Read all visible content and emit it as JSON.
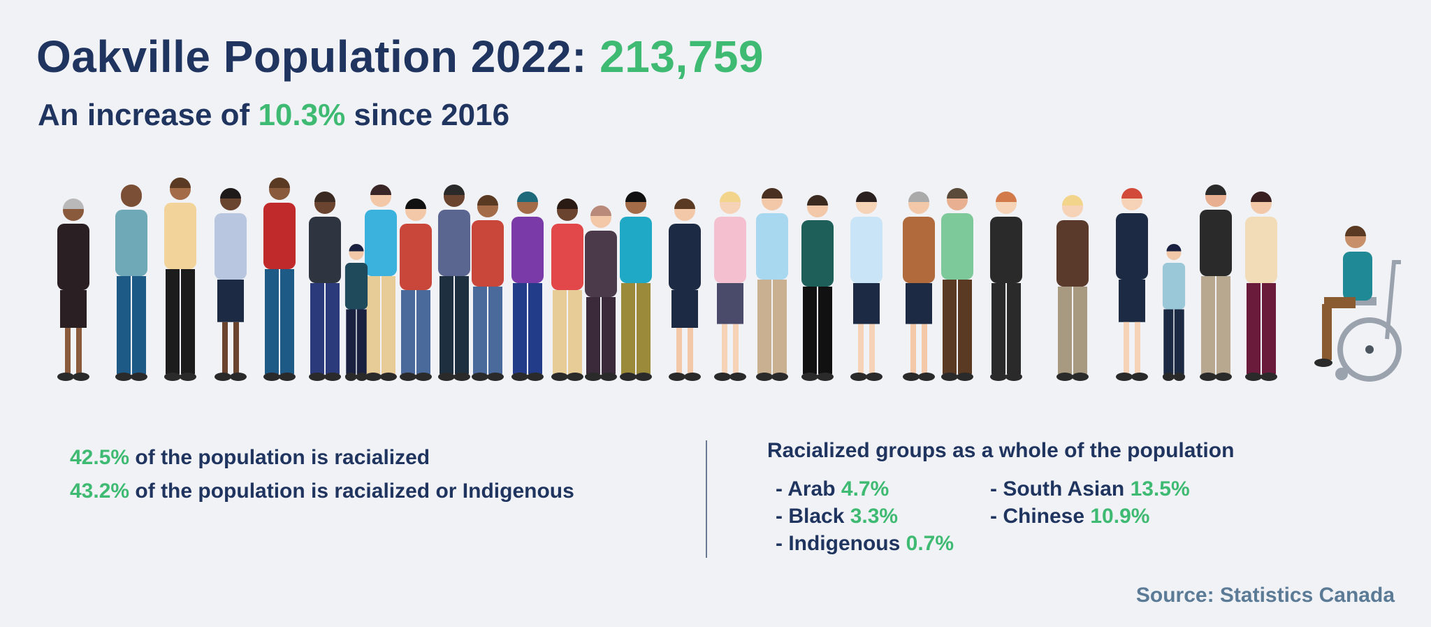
{
  "header": {
    "title_prefix": "Oakville Population 2022: ",
    "title_value": "213,759",
    "subtitle_prefix": "An increase of ",
    "subtitle_value": "10.3%",
    "subtitle_suffix": " since 2016"
  },
  "illustration": {
    "description": "Diverse group of 29 illustrated people standing in a row, including a person in a wheelchair",
    "figure_count": 29
  },
  "stats": [
    {
      "value": "42.5%",
      "text": " of the population is racialized"
    },
    {
      "value": "43.2%",
      "text": " of the population is racialized or Indigenous"
    }
  ],
  "groups": {
    "title": "Racialized groups as a whole of the population",
    "items": [
      {
        "label": "- Arab ",
        "value": "4.7%"
      },
      {
        "label": "- Black ",
        "value": "3.3%"
      },
      {
        "label": "- Indigenous ",
        "value": "0.7%"
      },
      {
        "label": "- South Asian ",
        "value": "13.5%"
      },
      {
        "label": "- Chinese ",
        "value": "10.9%"
      }
    ]
  },
  "source": "Source: Statistics Canada",
  "colors": {
    "background": "#f1f2f6",
    "navy": "#1f345e",
    "green": "#3fba73",
    "source": "#5a7a96"
  }
}
